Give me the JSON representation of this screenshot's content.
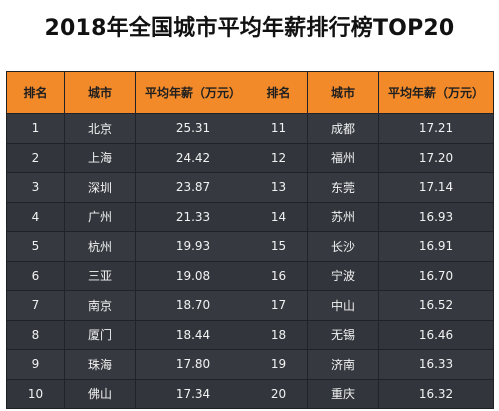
{
  "title": "2018年全国城市平均年薪排行榜TOP20",
  "headers": {
    "rank": "排名",
    "city": "城市",
    "salary": "平均年薪（万元）"
  },
  "left_rows": [
    {
      "rank": "1",
      "city": "北京",
      "salary": "25.31"
    },
    {
      "rank": "2",
      "city": "上海",
      "salary": "24.42"
    },
    {
      "rank": "3",
      "city": "深圳",
      "salary": "23.87"
    },
    {
      "rank": "4",
      "city": "广州",
      "salary": "21.33"
    },
    {
      "rank": "5",
      "city": "杭州",
      "salary": "19.93"
    },
    {
      "rank": "6",
      "city": "三亚",
      "salary": "19.08"
    },
    {
      "rank": "7",
      "city": "南京",
      "salary": "18.70"
    },
    {
      "rank": "8",
      "city": "厦门",
      "salary": "18.44"
    },
    {
      "rank": "9",
      "city": "珠海",
      "salary": "17.80"
    },
    {
      "rank": "10",
      "city": "佛山",
      "salary": "17.34"
    }
  ],
  "right_rows": [
    {
      "rank": "11",
      "city": "成都",
      "salary": "17.21"
    },
    {
      "rank": "12",
      "city": "福州",
      "salary": "17.20"
    },
    {
      "rank": "13",
      "city": "东莞",
      "salary": "17.14"
    },
    {
      "rank": "14",
      "city": "苏州",
      "salary": "16.93"
    },
    {
      "rank": "15",
      "city": "长沙",
      "salary": "16.91"
    },
    {
      "rank": "16",
      "city": "宁波",
      "salary": "16.70"
    },
    {
      "rank": "17",
      "city": "中山",
      "salary": "16.52"
    },
    {
      "rank": "18",
      "city": "无锡",
      "salary": "16.46"
    },
    {
      "rank": "19",
      "city": "济南",
      "salary": "16.33"
    },
    {
      "rank": "20",
      "city": "重庆",
      "salary": "16.32"
    }
  ],
  "colors": {
    "header_orange": "#f28a2a",
    "table_bg": "#363a40",
    "text_light": "#f2f2f2"
  }
}
